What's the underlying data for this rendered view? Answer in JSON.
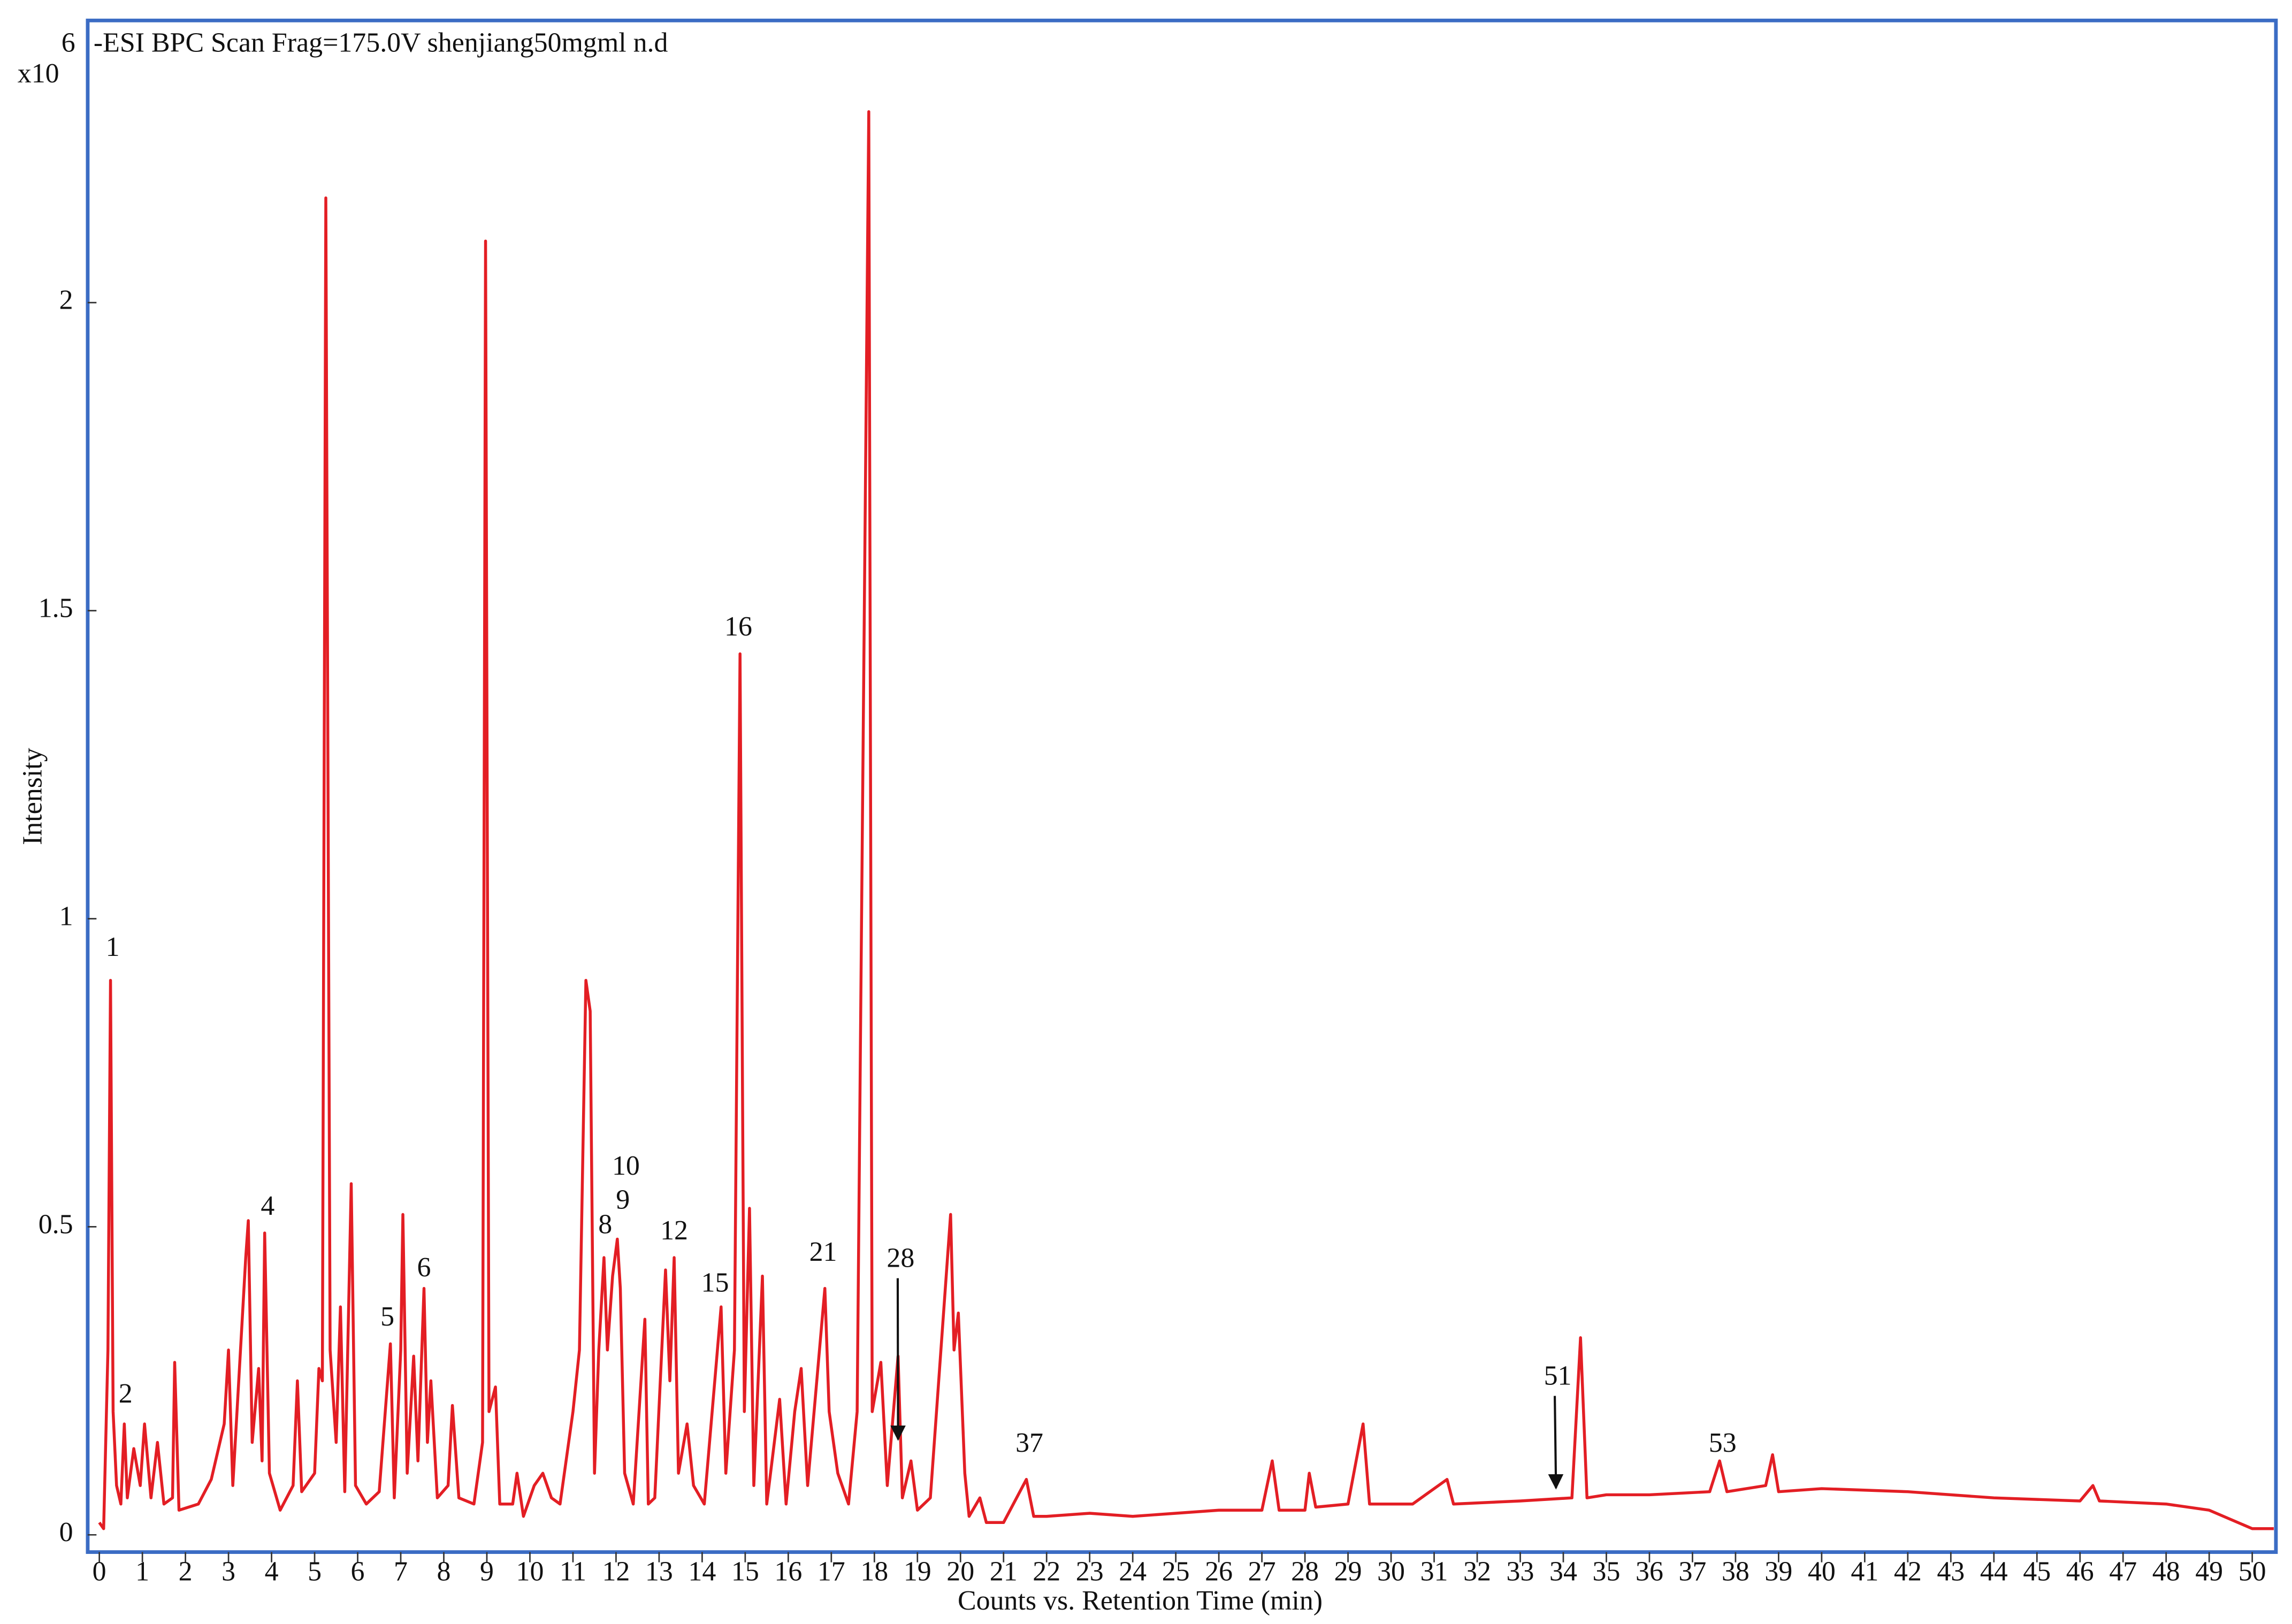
{
  "chart_data": {
    "type": "line",
    "title": "-ESI BPC Scan  Frag=175.0V shenjiang50mgml n.d",
    "x_label": "Counts vs. Retention Time (min)",
    "y_label": "Intensity",
    "y_scale_label": "x10",
    "y_scale_exponent": "6",
    "color": "#e31e24",
    "xlim": [
      -0.27,
      50.55
    ],
    "ylim": [
      -0.028,
      2.458
    ],
    "xticks": [
      0,
      1,
      2,
      3,
      4,
      5,
      6,
      7,
      8,
      9,
      10,
      11,
      12,
      13,
      14,
      15,
      16,
      17,
      18,
      19,
      20,
      21,
      22,
      23,
      24,
      25,
      26,
      27,
      28,
      29,
      30,
      31,
      32,
      33,
      34,
      35,
      36,
      37,
      38,
      39,
      40,
      41,
      42,
      43,
      44,
      45,
      46,
      47,
      48,
      49,
      50
    ],
    "yticks": [
      0,
      0.5,
      1,
      1.5,
      2
    ],
    "x": [
      0,
      0.1,
      0.2,
      0.26,
      0.32,
      0.4,
      0.5,
      0.58,
      0.65,
      0.8,
      0.95,
      1.05,
      1.2,
      1.35,
      1.5,
      1.7,
      1.75,
      1.85,
      2.3,
      2.6,
      2.9,
      3.0,
      3.1,
      3.4,
      3.46,
      3.55,
      3.7,
      3.78,
      3.84,
      3.95,
      4.2,
      4.5,
      4.6,
      4.7,
      5.0,
      5.1,
      5.18,
      5.26,
      5.36,
      5.5,
      5.6,
      5.7,
      5.85,
      5.95,
      6.2,
      6.5,
      6.76,
      6.85,
      7.0,
      7.05,
      7.15,
      7.3,
      7.4,
      7.54,
      7.62,
      7.7,
      7.85,
      8.1,
      8.2,
      8.35,
      8.7,
      8.9,
      8.97,
      9.05,
      9.2,
      9.3,
      9.6,
      9.7,
      9.85,
      10.1,
      10.3,
      10.5,
      10.7,
      10.9,
      11.0,
      11.15,
      11.3,
      11.4,
      11.5,
      11.6,
      11.72,
      11.8,
      11.92,
      12.03,
      12.1,
      12.2,
      12.4,
      12.67,
      12.75,
      12.9,
      13.15,
      13.25,
      13.35,
      13.45,
      13.65,
      13.8,
      14.05,
      14.44,
      14.55,
      14.75,
      14.88,
      14.98,
      15.1,
      15.2,
      15.4,
      15.5,
      15.8,
      15.95,
      16.15,
      16.3,
      16.45,
      16.85,
      16.95,
      17.15,
      17.4,
      17.6,
      17.87,
      17.95,
      18.15,
      18.3,
      18.55,
      18.65,
      18.85,
      19.0,
      19.3,
      19.77,
      19.85,
      19.95,
      20.1,
      20.2,
      20.45,
      20.6,
      21.0,
      21.53,
      21.7,
      22,
      23,
      24,
      25,
      26,
      27.0,
      27.24,
      27.4,
      28.0,
      28.1,
      28.25,
      29.0,
      29.35,
      29.5,
      30.5,
      31.3,
      31.45,
      33,
      34.2,
      34.4,
      34.55,
      35,
      36,
      37.4,
      37.63,
      37.8,
      38.7,
      38.86,
      39.0,
      40,
      42,
      44,
      46,
      46.3,
      46.45,
      48,
      49,
      50,
      50.5
    ],
    "values": [
      0.02,
      0.01,
      0.3,
      0.9,
      0.2,
      0.08,
      0.05,
      0.18,
      0.06,
      0.14,
      0.08,
      0.18,
      0.06,
      0.15,
      0.05,
      0.06,
      0.28,
      0.04,
      0.05,
      0.09,
      0.18,
      0.3,
      0.08,
      0.45,
      0.51,
      0.15,
      0.27,
      0.12,
      0.49,
      0.1,
      0.04,
      0.08,
      0.25,
      0.07,
      0.1,
      0.27,
      0.25,
      2.17,
      0.3,
      0.15,
      0.37,
      0.07,
      0.57,
      0.08,
      0.05,
      0.07,
      0.31,
      0.06,
      0.3,
      0.52,
      0.1,
      0.29,
      0.12,
      0.4,
      0.15,
      0.25,
      0.06,
      0.08,
      0.21,
      0.06,
      0.05,
      0.15,
      2.1,
      0.2,
      0.24,
      0.05,
      0.05,
      0.1,
      0.03,
      0.08,
      0.1,
      0.06,
      0.05,
      0.15,
      0.2,
      0.3,
      0.9,
      0.85,
      0.1,
      0.3,
      0.45,
      0.3,
      0.42,
      0.48,
      0.4,
      0.1,
      0.05,
      0.35,
      0.05,
      0.06,
      0.43,
      0.25,
      0.45,
      0.1,
      0.18,
      0.08,
      0.05,
      0.37,
      0.1,
      0.3,
      1.43,
      0.2,
      0.53,
      0.08,
      0.42,
      0.05,
      0.22,
      0.05,
      0.2,
      0.27,
      0.08,
      0.4,
      0.2,
      0.1,
      0.05,
      0.2,
      2.31,
      0.2,
      0.28,
      0.08,
      0.29,
      0.06,
      0.12,
      0.04,
      0.06,
      0.52,
      0.3,
      0.36,
      0.1,
      0.03,
      0.06,
      0.02,
      0.02,
      0.09,
      0.03,
      0.03,
      0.035,
      0.03,
      0.035,
      0.04,
      0.04,
      0.12,
      0.04,
      0.04,
      0.1,
      0.045,
      0.05,
      0.18,
      0.05,
      0.05,
      0.09,
      0.05,
      0.055,
      0.06,
      0.32,
      0.06,
      0.065,
      0.065,
      0.07,
      0.12,
      0.07,
      0.08,
      0.13,
      0.07,
      0.075,
      0.07,
      0.06,
      0.055,
      0.08,
      0.055,
      0.05,
      0.04,
      0.01,
      0.01
    ],
    "annotations": [
      {
        "text": "1",
        "x": 0.31,
        "y": 0.95
      },
      {
        "text": "2",
        "x": 0.61,
        "y": 0.225
      },
      {
        "text": "4",
        "x": 3.91,
        "y": 0.53
      },
      {
        "text": "5",
        "x": 6.69,
        "y": 0.35
      },
      {
        "text": "6",
        "x": 7.54,
        "y": 0.43
      },
      {
        "text": "8",
        "x": 11.75,
        "y": 0.5
      },
      {
        "text": "9",
        "x": 12.16,
        "y": 0.54
      },
      {
        "text": "10",
        "x": 12.23,
        "y": 0.595
      },
      {
        "text": "12",
        "x": 13.35,
        "y": 0.49
      },
      {
        "text": "15",
        "x": 14.3,
        "y": 0.405
      },
      {
        "text": "16",
        "x": 14.84,
        "y": 1.47
      },
      {
        "text": "21",
        "x": 16.81,
        "y": 0.455
      },
      {
        "text": "28",
        "x": 18.61,
        "y": 0.445,
        "arrow_to": [
          18.55,
          0.155
        ]
      },
      {
        "text": "37",
        "x": 21.6,
        "y": 0.145
      },
      {
        "text": "51",
        "x": 33.87,
        "y": 0.254,
        "arrow_to": [
          33.83,
          0.076
        ]
      },
      {
        "text": "53",
        "x": 37.7,
        "y": 0.145
      }
    ]
  }
}
